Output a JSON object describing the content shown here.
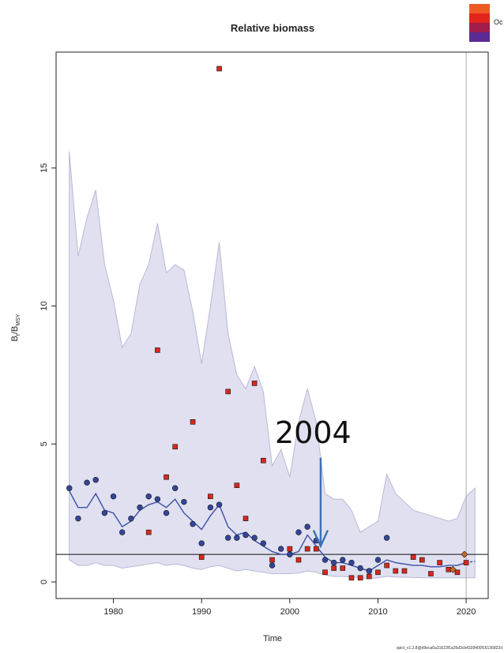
{
  "chart_data": {
    "type": "scatter",
    "title": "Relative biomass",
    "xlabel": "Time",
    "ylabel_main": "B",
    "ylabel_sub1": "t",
    "ylabel_mid": "/B",
    "ylabel_sub2": "MSY",
    "xlim": [
      1973.5,
      2022.5
    ],
    "ylim": [
      -0.6,
      19.2
    ],
    "x_ticks": [
      1980,
      1990,
      2000,
      2010,
      2020
    ],
    "y_ticks": [
      0,
      5,
      10,
      15
    ],
    "reference_line": 1,
    "vertical_line": 2020,
    "annotation_text": "2004",
    "annotation_arrow": {
      "x": 2003.5,
      "y_from": 4.5,
      "y_to": 1.3
    },
    "legend_text": "Oc",
    "footer_text": "spict_v1.2.8@d9eca0a31623f1a26d3cb4328400f16136822d",
    "colors": {
      "band": "#e0e0f0",
      "band_edge": "#b8b8d8",
      "line": "#3a4fa8",
      "circle": "#34469a",
      "square": "#d8281e",
      "legend": [
        "#ee5a24",
        "#e1251b",
        "#a01d4c",
        "#5b2a93"
      ]
    },
    "series": [
      {
        "name": "",
        "kind": "estimate_line",
        "x": [
          1975,
          1976,
          1977,
          1978,
          1979,
          1980,
          1981,
          1982,
          1983,
          1984,
          1985,
          1986,
          1987,
          1988,
          1989,
          1990,
          1991,
          1992,
          1993,
          1994,
          1995,
          1996,
          1997,
          1998,
          1999,
          2000,
          2001,
          2002,
          2003,
          2004,
          2005,
          2006,
          2007,
          2008,
          2009,
          2010,
          2011,
          2012,
          2013,
          2014,
          2015,
          2016,
          2017,
          2018,
          2019,
          2020
        ],
        "values": [
          3.3,
          2.7,
          2.7,
          3.2,
          2.6,
          2.5,
          2.0,
          2.2,
          2.6,
          2.8,
          2.9,
          2.7,
          3.0,
          2.5,
          2.2,
          1.9,
          2.4,
          2.8,
          2.0,
          1.7,
          1.8,
          1.5,
          1.3,
          1.1,
          1.0,
          1.0,
          1.1,
          1.7,
          1.3,
          0.9,
          0.7,
          0.7,
          0.6,
          0.5,
          0.4,
          0.6,
          0.8,
          0.7,
          0.65,
          0.6,
          0.6,
          0.55,
          0.55,
          0.6,
          0.6,
          0.7
        ]
      },
      {
        "name": "",
        "kind": "forecast_line",
        "x": [
          2020,
          2021
        ],
        "values": [
          0.7,
          0.75
        ]
      },
      {
        "name": "",
        "kind": "ci_upper",
        "x": [
          1975,
          1976,
          1977,
          1978,
          1979,
          1980,
          1981,
          1982,
          1983,
          1984,
          1985,
          1986,
          1987,
          1988,
          1989,
          1990,
          1991,
          1992,
          1993,
          1994,
          1995,
          1996,
          1997,
          1998,
          1999,
          2000,
          2001,
          2002,
          2003,
          2004,
          2005,
          2006,
          2007,
          2008,
          2009,
          2010,
          2011,
          2012,
          2013,
          2014,
          2015,
          2016,
          2017,
          2018,
          2019,
          2020,
          2021
        ],
        "values": [
          15.6,
          11.8,
          13.2,
          14.2,
          11.5,
          10.2,
          8.5,
          9.0,
          10.8,
          11.5,
          13.0,
          11.2,
          11.5,
          11.3,
          9.8,
          7.9,
          10.0,
          12.3,
          9.0,
          7.5,
          7.0,
          7.8,
          6.9,
          4.2,
          4.8,
          3.8,
          5.8,
          7.0,
          5.8,
          3.2,
          3.0,
          3.0,
          2.6,
          1.8,
          2.0,
          2.2,
          3.9,
          3.2,
          2.9,
          2.6,
          2.5,
          2.4,
          2.3,
          2.2,
          2.3,
          3.1,
          3.4
        ]
      },
      {
        "name": "",
        "kind": "ci_lower",
        "x": [
          1975,
          1976,
          1977,
          1978,
          1979,
          1980,
          1981,
          1982,
          1983,
          1984,
          1985,
          1986,
          1987,
          1988,
          1989,
          1990,
          1991,
          1992,
          1993,
          1994,
          1995,
          1996,
          1997,
          1998,
          1999,
          2000,
          2001,
          2002,
          2003,
          2004,
          2005,
          2006,
          2007,
          2008,
          2009,
          2010,
          2011,
          2012,
          2013,
          2014,
          2015,
          2016,
          2017,
          2018,
          2019,
          2020,
          2021
        ],
        "values": [
          0.8,
          0.6,
          0.6,
          0.7,
          0.6,
          0.6,
          0.5,
          0.55,
          0.6,
          0.65,
          0.7,
          0.6,
          0.65,
          0.6,
          0.5,
          0.45,
          0.55,
          0.6,
          0.5,
          0.4,
          0.45,
          0.4,
          0.35,
          0.3,
          0.3,
          0.3,
          0.32,
          0.4,
          0.35,
          0.25,
          0.2,
          0.2,
          0.18,
          0.15,
          0.12,
          0.15,
          0.2,
          0.18,
          0.17,
          0.16,
          0.15,
          0.15,
          0.15,
          0.15,
          0.15,
          0.15,
          0.15
        ]
      },
      {
        "name": "",
        "kind": "circles",
        "x": [
          1975,
          1976,
          1977,
          1978,
          1979,
          1980,
          1981,
          1982,
          1983,
          1984,
          1985,
          1986,
          1987,
          1988,
          1989,
          1990,
          1991,
          1992,
          1993,
          1994,
          1995,
          1996,
          1997,
          1998,
          1999,
          2000,
          2001,
          2002,
          2003,
          2004,
          2005,
          2006,
          2007,
          2008,
          2009,
          2010,
          2011
        ],
        "values": [
          3.4,
          2.3,
          3.6,
          3.7,
          2.5,
          3.1,
          1.8,
          2.3,
          2.7,
          3.1,
          3.0,
          2.5,
          3.4,
          2.9,
          2.1,
          1.4,
          2.7,
          2.8,
          1.6,
          1.6,
          1.7,
          1.6,
          1.4,
          0.6,
          1.2,
          1.0,
          1.8,
          2.0,
          1.5,
          0.8,
          0.7,
          0.8,
          0.7,
          0.5,
          0.4,
          0.8,
          1.6
        ]
      },
      {
        "name": "",
        "kind": "squares",
        "x": [
          1984,
          1985,
          1986,
          1987,
          1989,
          1990,
          1991,
          1992,
          1993,
          1994,
          1995,
          1996,
          1997,
          1998,
          2000,
          2001,
          2002,
          2003,
          2004,
          2005,
          2006,
          2007,
          2008,
          2009,
          2010,
          2011,
          2012,
          2013,
          2014,
          2015,
          2016,
          2017,
          2018,
          2019,
          2020
        ],
        "values": [
          1.8,
          8.4,
          3.8,
          4.9,
          5.8,
          0.9,
          3.1,
          18.6,
          6.9,
          3.5,
          2.3,
          7.2,
          4.4,
          0.8,
          1.2,
          0.8,
          1.2,
          1.2,
          0.35,
          0.5,
          0.5,
          0.15,
          0.15,
          0.2,
          0.35,
          0.6,
          0.4,
          0.4,
          0.9,
          0.8,
          0.3,
          0.7,
          0.45,
          0.35,
          0.7
        ]
      },
      {
        "name": "",
        "kind": "diamonds",
        "x": [
          2018.5,
          2019.8
        ],
        "values": [
          0.45,
          1.0
        ]
      }
    ]
  }
}
